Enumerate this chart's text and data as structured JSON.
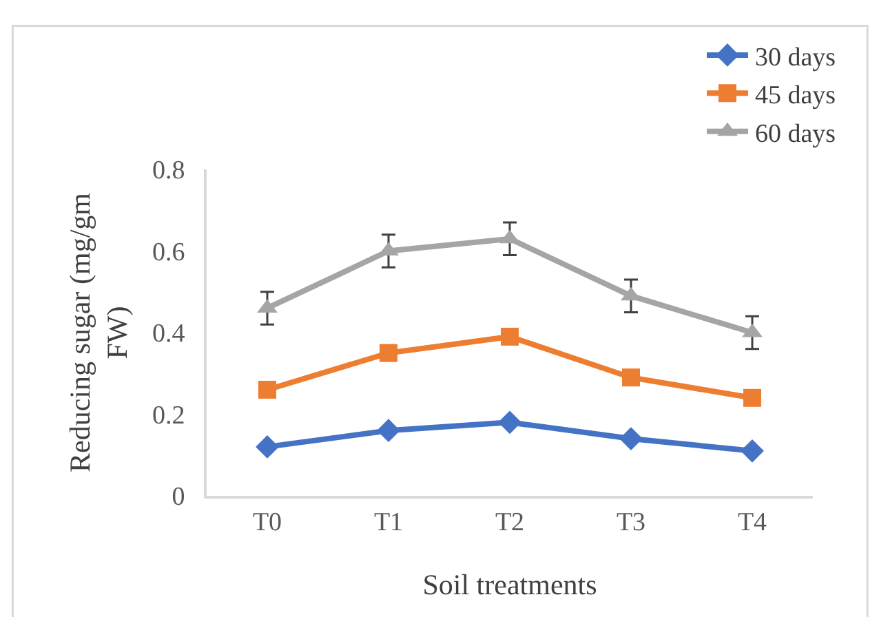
{
  "chart_data": {
    "type": "line",
    "xlabel": "Soil treatments",
    "ylabel": "Reducing sugar (mg/gm FW)",
    "categories": [
      "T0",
      "T1",
      "T2",
      "T3",
      "T4"
    ],
    "ylim": [
      0,
      0.8
    ],
    "yticks": [
      0,
      0.2,
      0.4,
      0.6,
      0.8
    ],
    "legend": "top right",
    "series": [
      {
        "name": "30 days",
        "color": "#4472c4",
        "marker": "diamond",
        "values": [
          0.12,
          0.16,
          0.18,
          0.14,
          0.11
        ]
      },
      {
        "name": "45 days",
        "color": "#ed7d31",
        "marker": "square",
        "values": [
          0.26,
          0.35,
          0.39,
          0.29,
          0.24
        ]
      },
      {
        "name": "60 days",
        "color": "#a5a5a5",
        "marker": "triangle",
        "values": [
          0.46,
          0.6,
          0.63,
          0.49,
          0.4
        ],
        "errors": [
          0.04,
          0.04,
          0.04,
          0.04,
          0.04
        ]
      }
    ]
  }
}
